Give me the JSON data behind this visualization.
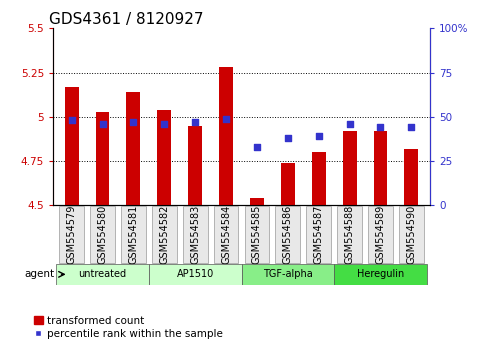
{
  "title": "GDS4361 / 8120927",
  "samples": [
    "GSM554579",
    "GSM554580",
    "GSM554581",
    "GSM554582",
    "GSM554583",
    "GSM554584",
    "GSM554585",
    "GSM554586",
    "GSM554587",
    "GSM554588",
    "GSM554589",
    "GSM554590"
  ],
  "bar_values": [
    5.17,
    5.03,
    5.14,
    5.04,
    4.95,
    5.28,
    4.54,
    4.74,
    4.8,
    4.92,
    4.92,
    4.82
  ],
  "bar_bottom": 4.5,
  "percentile_values": [
    48,
    46,
    47,
    46,
    47,
    49,
    33,
    38,
    39,
    46,
    44,
    44
  ],
  "bar_color": "#cc0000",
  "dot_color": "#3333cc",
  "ylim_left": [
    4.5,
    5.5
  ],
  "ylim_right": [
    0,
    100
  ],
  "yticks_left": [
    4.5,
    4.75,
    5.0,
    5.25,
    5.5
  ],
  "yticks_right": [
    0,
    25,
    50,
    75,
    100
  ],
  "ytick_labels_left": [
    "4.5",
    "4.75",
    "5",
    "5.25",
    "5.5"
  ],
  "ytick_labels_right": [
    "0",
    "25",
    "50",
    "75",
    "100%"
  ],
  "hlines": [
    4.75,
    5.0,
    5.25
  ],
  "groups": [
    {
      "label": "untreated",
      "start": 0,
      "end": 3,
      "color": "#ccffcc"
    },
    {
      "label": "AP1510",
      "start": 3,
      "end": 6,
      "color": "#ccffcc"
    },
    {
      "label": "TGF-alpha",
      "start": 6,
      "end": 9,
      "color": "#88ee88"
    },
    {
      "label": "Heregulin",
      "start": 9,
      "end": 12,
      "color": "#44dd44"
    }
  ],
  "xlabel_agent": "agent",
  "legend_bar": "transformed count",
  "legend_dot": "percentile rank within the sample",
  "left_tick_color": "#cc0000",
  "right_tick_color": "#3333cc",
  "bar_width": 0.45,
  "dot_size": 22,
  "title_fontsize": 11,
  "tick_fontsize": 7.5,
  "label_fontsize": 7.5,
  "group_fontsize": 8,
  "bg_color": "#e8e8e8"
}
